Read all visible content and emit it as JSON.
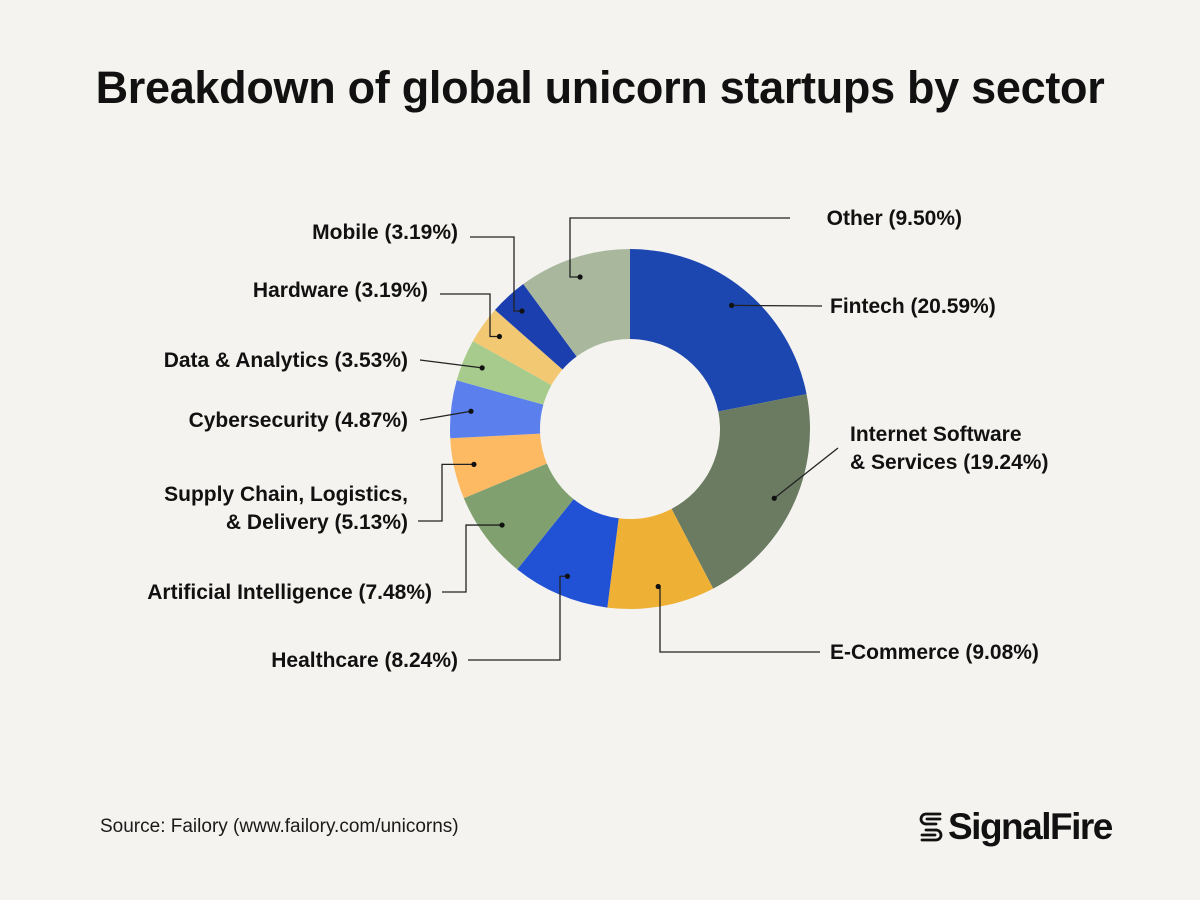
{
  "title": "Breakdown of global unicorn startups by sector",
  "source": "Source: Failory (www.failory.com/unicorns)",
  "logo": {
    "text": "SignalFire",
    "icon": "signalfire-s-icon"
  },
  "chart_data": {
    "type": "pie",
    "variant": "donut",
    "title": "Breakdown of global unicorn startups by sector",
    "unit": "%",
    "slices": [
      {
        "id": "fintech",
        "name": "Fintech",
        "value": 20.59,
        "label_lines": [
          "Fintech (20.59%)"
        ],
        "color": "#1c46b0"
      },
      {
        "id": "internet-software",
        "name": "Internet Software & Services",
        "value": 19.24,
        "label_lines": [
          "Internet Software",
          "& Services (19.24%)"
        ],
        "color": "#6a7b62"
      },
      {
        "id": "e-commerce",
        "name": "E-Commerce",
        "value": 9.08,
        "label_lines": [
          "E-Commerce (9.08%)"
        ],
        "color": "#eeb035"
      },
      {
        "id": "healthcare",
        "name": "Healthcare",
        "value": 8.24,
        "label_lines": [
          "Healthcare (8.24%)"
        ],
        "color": "#2152d6"
      },
      {
        "id": "artificial-intelligence",
        "name": "Artificial Intelligence",
        "value": 7.48,
        "label_lines": [
          "Artificial Intelligence (7.48%)"
        ],
        "color": "#80a070"
      },
      {
        "id": "supply-chain",
        "name": "Supply Chain, Logistics, & Delivery",
        "value": 5.13,
        "label_lines": [
          "Supply Chain, Logistics,",
          "& Delivery (5.13%)"
        ],
        "color": "#fdba63"
      },
      {
        "id": "cybersecurity",
        "name": "Cybersecurity",
        "value": 4.87,
        "label_lines": [
          "Cybersecurity (4.87%)"
        ],
        "color": "#5b80ee"
      },
      {
        "id": "data-analytics",
        "name": "Data & Analytics",
        "value": 3.53,
        "label_lines": [
          "Data & Analytics (3.53%)"
        ],
        "color": "#a6cb8c"
      },
      {
        "id": "hardware",
        "name": "Hardware",
        "value": 3.19,
        "label_lines": [
          "Hardware (3.19%)"
        ],
        "color": "#f2c872"
      },
      {
        "id": "mobile",
        "name": "Mobile",
        "value": 3.19,
        "label_lines": [
          "Mobile (3.19%)"
        ],
        "color": "#1b3fae"
      },
      {
        "id": "other",
        "name": "Other",
        "value": 9.5,
        "label_lines": [
          "Other (9.50%)"
        ],
        "color": "#a9b89d"
      }
    ]
  }
}
